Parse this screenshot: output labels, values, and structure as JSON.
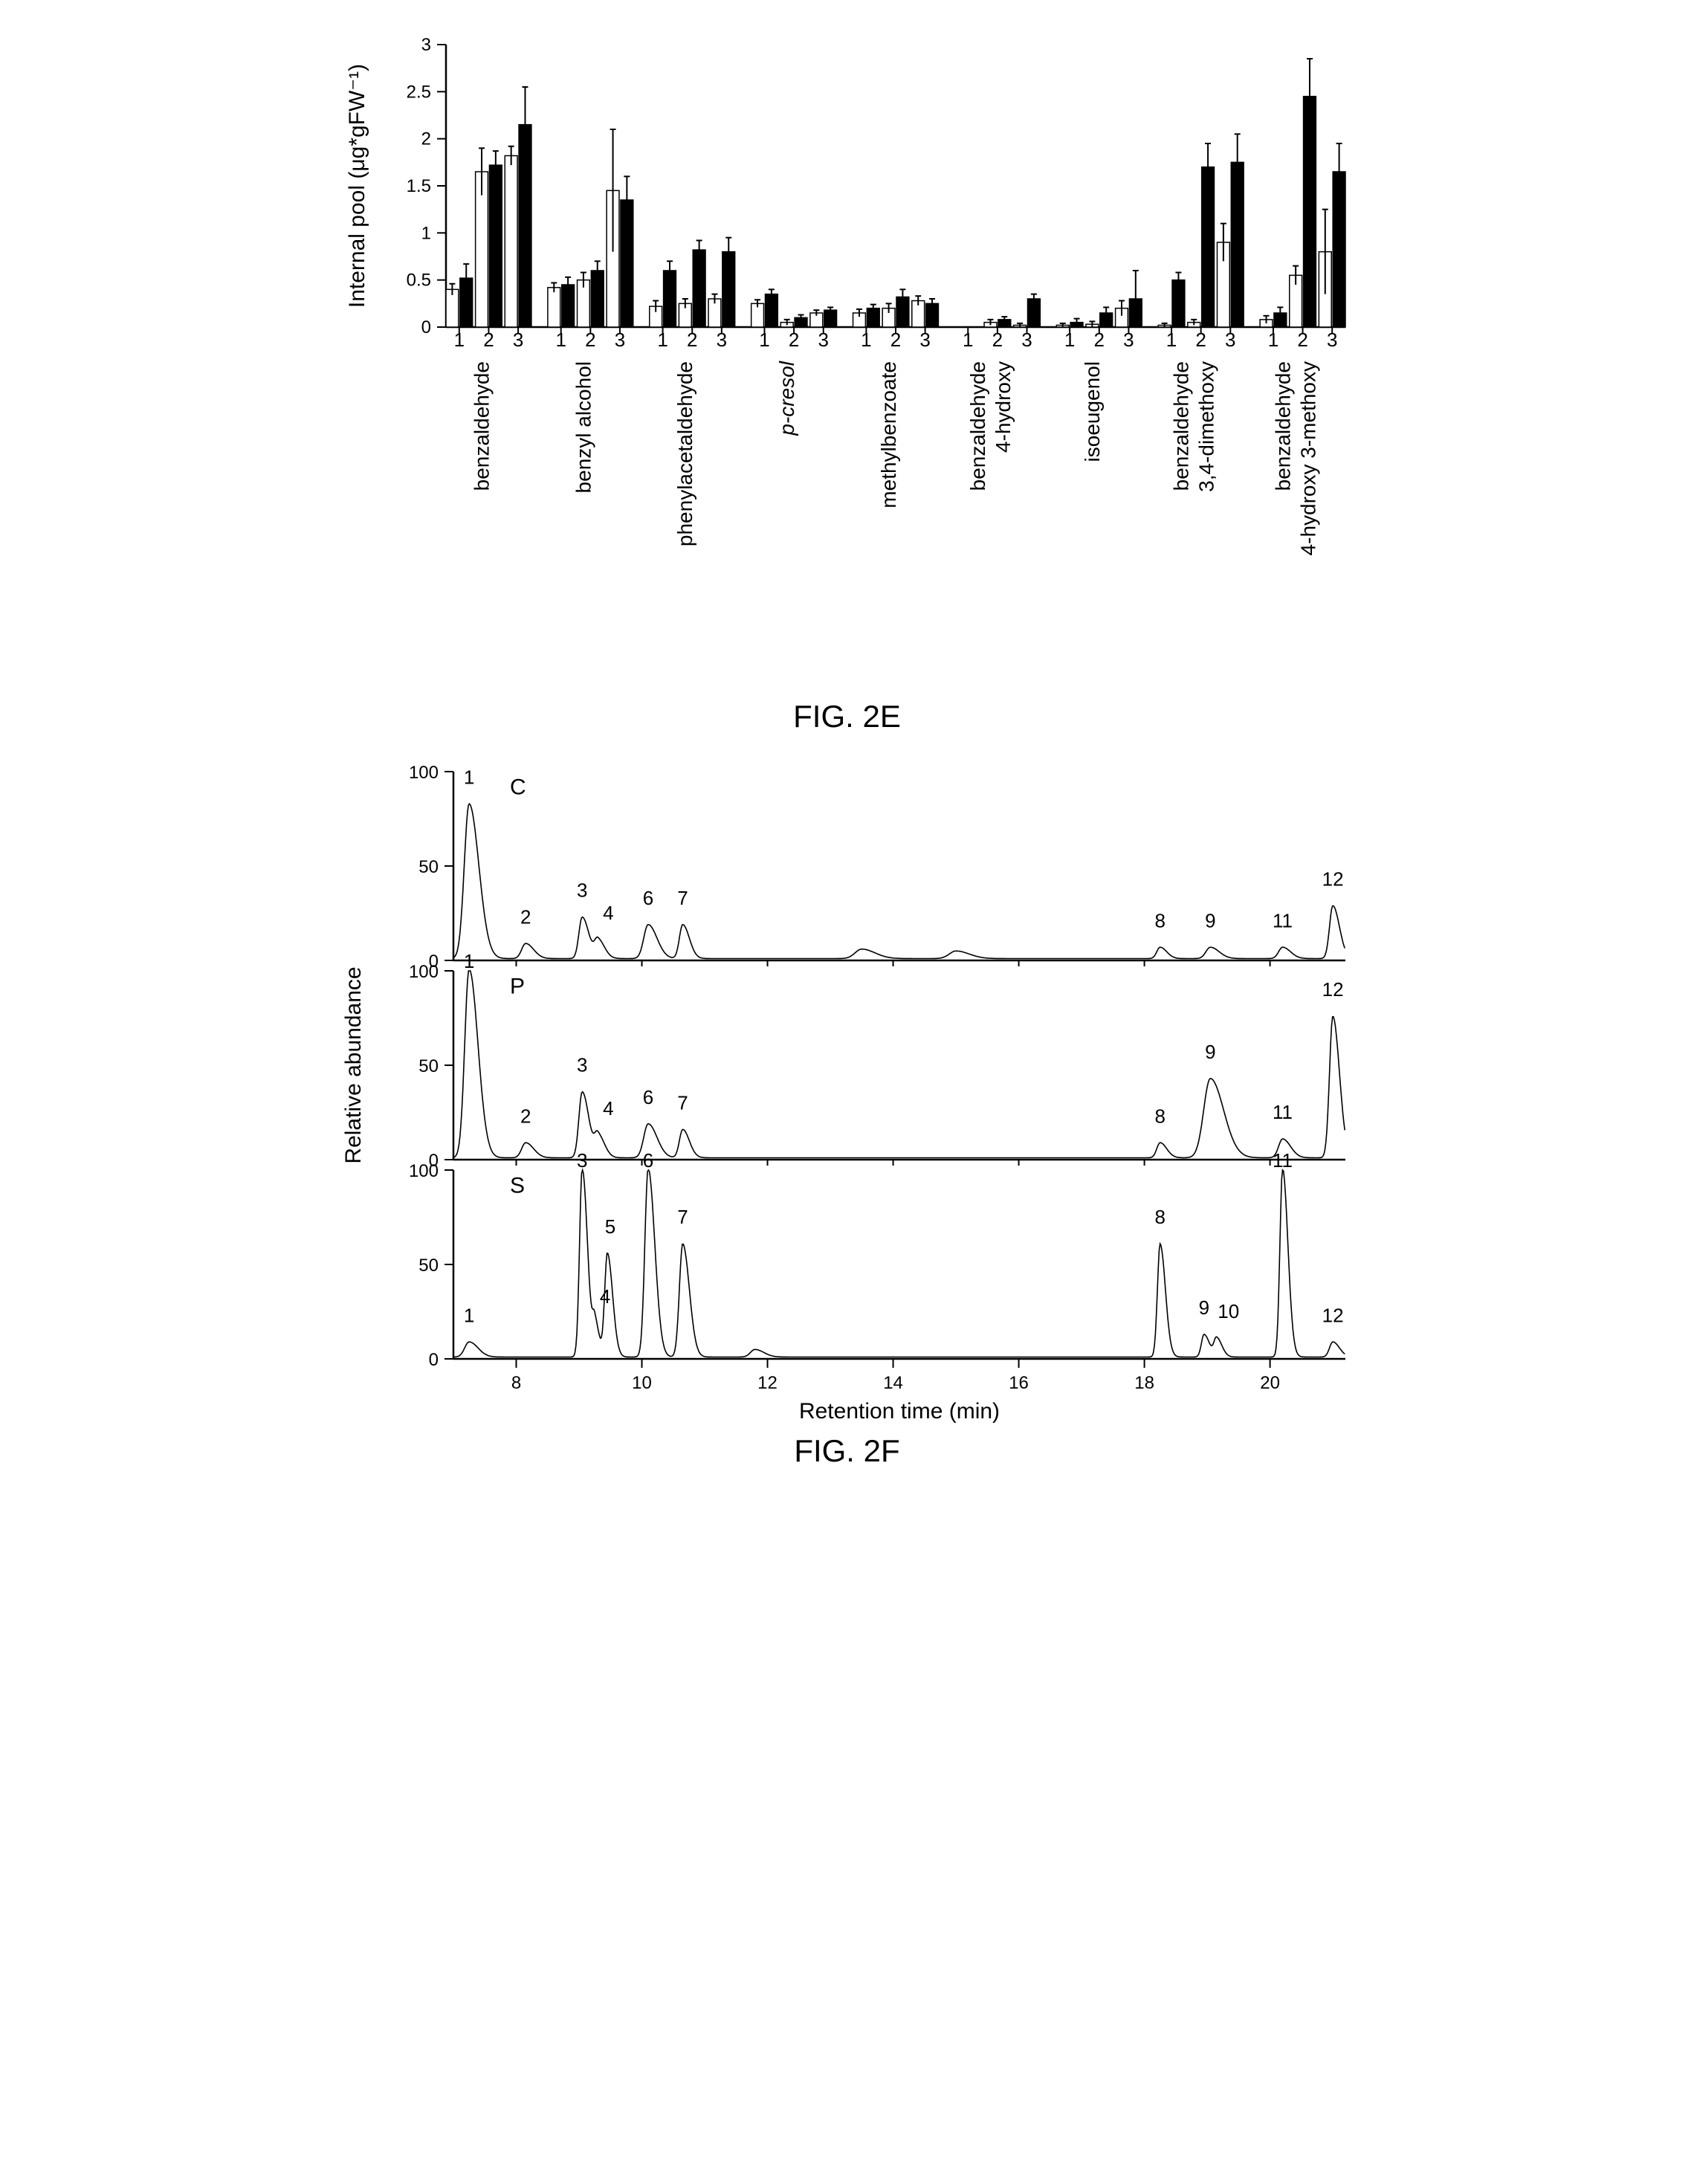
{
  "figE": {
    "type": "bar",
    "ylabel": "Internal pool   (μg*gFW⁻¹)",
    "ylabel_fontsize": 30,
    "ylim": [
      0,
      3
    ],
    "ytick_step": 0.5,
    "yticks": [
      0,
      0.5,
      1,
      1.5,
      2,
      2.5,
      3
    ],
    "background_color": "#ffffff",
    "bar_colors": {
      "white": "#ffffff",
      "black": "#000000"
    },
    "stroke_color": "#000000",
    "label_fontsize": 28,
    "tick_fontsize": 24,
    "x_sublabels": [
      "1",
      "2",
      "3"
    ],
    "groups": [
      {
        "label_lines": [
          "benzaldehyde"
        ],
        "sub": [
          {
            "x": "1",
            "white": 0.4,
            "white_err": 0.06,
            "black": 0.52,
            "black_err": 0.15
          },
          {
            "x": "2",
            "white": 1.65,
            "white_err": 0.25,
            "black": 1.72,
            "black_err": 0.15
          },
          {
            "x": "3",
            "white": 1.82,
            "white_err": 0.1,
            "black": 2.15,
            "black_err": 0.4
          }
        ]
      },
      {
        "label_lines": [
          "benzyl alcohol"
        ],
        "sub": [
          {
            "x": "1",
            "white": 0.42,
            "white_err": 0.05,
            "black": 0.45,
            "black_err": 0.08
          },
          {
            "x": "2",
            "white": 0.5,
            "white_err": 0.08,
            "black": 0.6,
            "black_err": 0.1
          },
          {
            "x": "3",
            "white": 1.45,
            "white_err": 0.65,
            "black": 1.35,
            "black_err": 0.25
          }
        ]
      },
      {
        "label_lines": [
          "phenylacetaldehyde"
        ],
        "sub": [
          {
            "x": "1",
            "white": 0.22,
            "white_err": 0.06,
            "black": 0.6,
            "black_err": 0.1
          },
          {
            "x": "2",
            "white": 0.25,
            "white_err": 0.05,
            "black": 0.82,
            "black_err": 0.1
          },
          {
            "x": "3",
            "white": 0.3,
            "white_err": 0.05,
            "black": 0.8,
            "black_err": 0.15
          }
        ]
      },
      {
        "label_lines": [
          "p-cresol"
        ],
        "sub": [
          {
            "x": "1",
            "white": 0.25,
            "white_err": 0.04,
            "black": 0.35,
            "black_err": 0.05
          },
          {
            "x": "2",
            "white": 0.05,
            "white_err": 0.03,
            "black": 0.1,
            "black_err": 0.03
          },
          {
            "x": "3",
            "white": 0.15,
            "white_err": 0.03,
            "black": 0.18,
            "black_err": 0.03
          }
        ]
      },
      {
        "label_lines": [
          "methylbenzoate"
        ],
        "sub": [
          {
            "x": "1",
            "white": 0.15,
            "white_err": 0.04,
            "black": 0.2,
            "black_err": 0.04
          },
          {
            "x": "2",
            "white": 0.2,
            "white_err": 0.05,
            "black": 0.32,
            "black_err": 0.08
          },
          {
            "x": "3",
            "white": 0.28,
            "white_err": 0.05,
            "black": 0.25,
            "black_err": 0.05
          }
        ]
      },
      {
        "label_lines": [
          "benzaldehyde",
          "4-hydroxy"
        ],
        "sub": [
          {
            "x": "1",
            "white": 0.0,
            "white_err": 0.0,
            "black": 0.0,
            "black_err": 0.0
          },
          {
            "x": "2",
            "white": 0.05,
            "white_err": 0.03,
            "black": 0.08,
            "black_err": 0.03
          },
          {
            "x": "3",
            "white": 0.02,
            "white_err": 0.02,
            "black": 0.3,
            "black_err": 0.05
          }
        ]
      },
      {
        "label_lines": [
          "isoeugenol"
        ],
        "sub": [
          {
            "x": "1",
            "white": 0.02,
            "white_err": 0.02,
            "black": 0.05,
            "black_err": 0.04
          },
          {
            "x": "2",
            "white": 0.03,
            "white_err": 0.03,
            "black": 0.15,
            "black_err": 0.06
          },
          {
            "x": "3",
            "white": 0.2,
            "white_err": 0.08,
            "black": 0.3,
            "black_err": 0.3
          }
        ]
      },
      {
        "label_lines": [
          "benzaldehyde",
          "3,4-dimethoxy"
        ],
        "sub": [
          {
            "x": "1",
            "white": 0.02,
            "white_err": 0.02,
            "black": 0.5,
            "black_err": 0.08
          },
          {
            "x": "2",
            "white": 0.05,
            "white_err": 0.03,
            "black": 1.7,
            "black_err": 0.25
          },
          {
            "x": "3",
            "white": 0.9,
            "white_err": 0.2,
            "black": 1.75,
            "black_err": 0.3
          }
        ]
      },
      {
        "label_lines": [
          "benzaldehyde",
          "4-hydroxy 3-methoxy"
        ],
        "sub": [
          {
            "x": "1",
            "white": 0.08,
            "white_err": 0.04,
            "black": 0.15,
            "black_err": 0.06
          },
          {
            "x": "2",
            "white": 0.55,
            "white_err": 0.1,
            "black": 2.45,
            "black_err": 0.4
          },
          {
            "x": "3",
            "white": 0.8,
            "white_err": 0.45,
            "black": 1.65,
            "black_err": 0.3
          }
        ]
      }
    ],
    "caption": "FIG. 2E"
  },
  "figF": {
    "type": "chromatogram",
    "xlabel": "Retention time (min)",
    "ylabel": "Relative abundance",
    "xlabel_fontsize": 28,
    "ylabel_fontsize": 30,
    "xlim": [
      7,
      21.2
    ],
    "ylim": [
      0,
      100
    ],
    "xticks": [
      8,
      10,
      12,
      14,
      16,
      18,
      20
    ],
    "yticks": [
      0,
      50,
      100
    ],
    "tick_fontsize": 26,
    "peak_label_fontsize": 26,
    "line_color": "#000000",
    "background_color": "#ffffff",
    "panels": [
      {
        "tag": "C",
        "peaks": [
          {
            "num": "1",
            "rt": 7.25,
            "h": 82,
            "w": 0.22
          },
          {
            "num": "2",
            "rt": 8.15,
            "h": 8,
            "w": 0.18
          },
          {
            "num": "3",
            "rt": 9.05,
            "h": 22,
            "w": 0.15
          },
          {
            "num": "4",
            "rt": 9.3,
            "h": 10,
            "w": 0.15
          },
          {
            "num": "6",
            "rt": 10.1,
            "h": 18,
            "w": 0.2
          },
          {
            "num": "7",
            "rt": 10.65,
            "h": 18,
            "w": 0.15
          },
          {
            "num": "",
            "rt": 13.5,
            "h": 5,
            "w": 0.3
          },
          {
            "num": "",
            "rt": 15.0,
            "h": 4,
            "w": 0.3
          },
          {
            "num": "8",
            "rt": 18.25,
            "h": 6,
            "w": 0.15
          },
          {
            "num": "9",
            "rt": 19.05,
            "h": 6,
            "w": 0.2
          },
          {
            "num": "11",
            "rt": 20.2,
            "h": 6,
            "w": 0.18
          },
          {
            "num": "12",
            "rt": 21.0,
            "h": 28,
            "w": 0.15
          }
        ]
      },
      {
        "tag": "P",
        "peaks": [
          {
            "num": "1",
            "rt": 7.25,
            "h": 100,
            "w": 0.2
          },
          {
            "num": "2",
            "rt": 8.15,
            "h": 8,
            "w": 0.18
          },
          {
            "num": "3",
            "rt": 9.05,
            "h": 35,
            "w": 0.15
          },
          {
            "num": "4",
            "rt": 9.3,
            "h": 12,
            "w": 0.15
          },
          {
            "num": "6",
            "rt": 10.1,
            "h": 18,
            "w": 0.2
          },
          {
            "num": "7",
            "rt": 10.65,
            "h": 15,
            "w": 0.15
          },
          {
            "num": "8",
            "rt": 18.25,
            "h": 8,
            "w": 0.15
          },
          {
            "num": "9",
            "rt": 19.05,
            "h": 42,
            "w": 0.3
          },
          {
            "num": "11",
            "rt": 20.2,
            "h": 10,
            "w": 0.18
          },
          {
            "num": "12",
            "rt": 21.0,
            "h": 75,
            "w": 0.15
          }
        ]
      },
      {
        "tag": "S",
        "peaks": [
          {
            "num": "1",
            "rt": 7.25,
            "h": 8,
            "w": 0.2
          },
          {
            "num": "3",
            "rt": 9.05,
            "h": 100,
            "w": 0.12
          },
          {
            "num": "4",
            "rt": 9.25,
            "h": 18,
            "w": 0.1
          },
          {
            "num": "5",
            "rt": 9.45,
            "h": 55,
            "w": 0.12
          },
          {
            "num": "6",
            "rt": 10.1,
            "h": 100,
            "w": 0.15
          },
          {
            "num": "7",
            "rt": 10.65,
            "h": 60,
            "w": 0.15
          },
          {
            "num": "",
            "rt": 11.8,
            "h": 4,
            "w": 0.2
          },
          {
            "num": "8",
            "rt": 18.25,
            "h": 60,
            "w": 0.12
          },
          {
            "num": "9",
            "rt": 18.95,
            "h": 12,
            "w": 0.12
          },
          {
            "num": "10",
            "rt": 19.15,
            "h": 10,
            "w": 0.12
          },
          {
            "num": "11",
            "rt": 20.2,
            "h": 100,
            "w": 0.12
          },
          {
            "num": "12",
            "rt": 21.0,
            "h": 8,
            "w": 0.15
          }
        ]
      }
    ],
    "caption": "FIG. 2F"
  }
}
